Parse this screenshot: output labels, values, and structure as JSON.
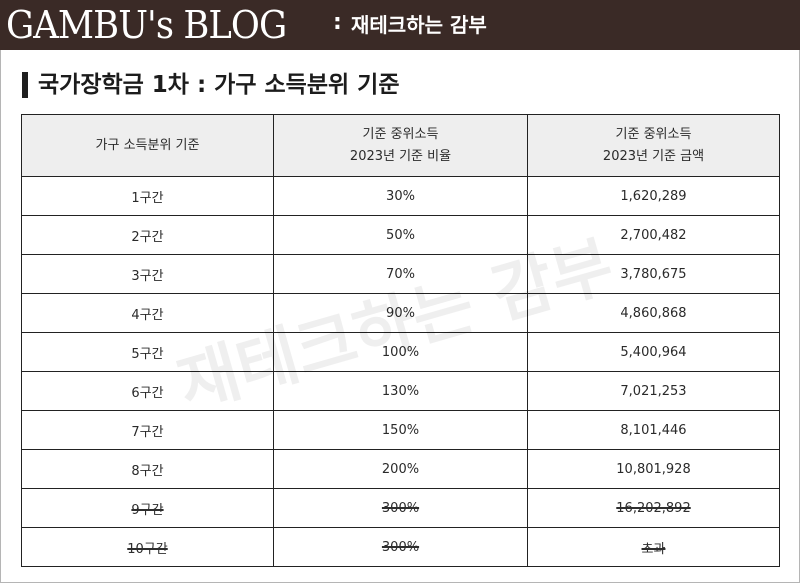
{
  "header": {
    "logo": "GAMBU's BLOG",
    "separator": ":",
    "tagline": "재테크하는 감부"
  },
  "title": "국가장학금 1차 : 가구 소득분위 기준",
  "watermark": "재테크하는 감부",
  "table": {
    "headers": [
      [
        "가구 소득분위 기준"
      ],
      [
        "기준 중위소득",
        "2023년 기준 비율"
      ],
      [
        "기준 중위소득",
        "2023년 기준 금액"
      ]
    ],
    "rows": [
      {
        "bracket": "1구간",
        "ratio": "30%",
        "amount": "1,620,289"
      },
      {
        "bracket": "2구간",
        "ratio": "50%",
        "amount": "2,700,482"
      },
      {
        "bracket": "3구간",
        "ratio": "70%",
        "amount": "3,780,675"
      },
      {
        "bracket": "4구간",
        "ratio": "90%",
        "amount": "4,860,868"
      },
      {
        "bracket": "5구간",
        "ratio": "100%",
        "amount": "5,400,964"
      },
      {
        "bracket": "6구간",
        "ratio": "130%",
        "amount": "7,021,253"
      },
      {
        "bracket": "7구간",
        "ratio": "150%",
        "amount": "8,101,446"
      },
      {
        "bracket": "8구간",
        "ratio": "200%",
        "amount": "10,801,928"
      },
      {
        "bracket": "9구간",
        "ratio": "300%",
        "amount": "16,202,892",
        "struck": true
      },
      {
        "bracket": "10구간",
        "ratio": "300%",
        "amount": "초과",
        "struck": true
      }
    ]
  }
}
